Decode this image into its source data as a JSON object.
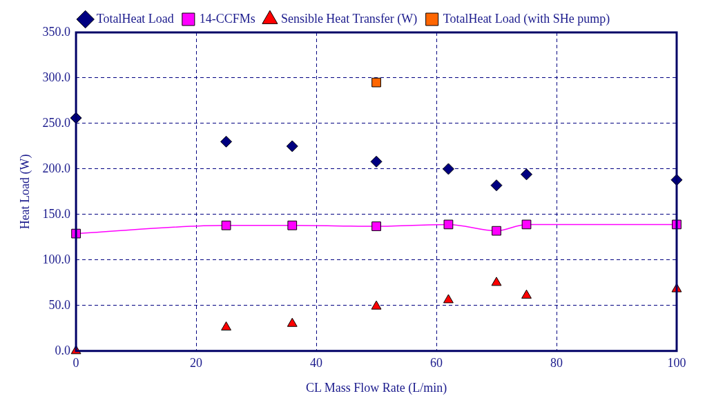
{
  "chart_data": {
    "type": "scatter",
    "xlabel": "CL Mass Flow Rate (L/min)",
    "ylabel": "Heat Load (W)",
    "xlim": [
      0,
      100
    ],
    "xticks": [
      0,
      20,
      40,
      60,
      80,
      100
    ],
    "ylim": [
      0,
      350
    ],
    "yticks": [
      {
        "value": 0,
        "label": "0.0"
      },
      {
        "value": 50,
        "label": "50.0"
      },
      {
        "value": 100,
        "label": "100.0"
      },
      {
        "value": 150,
        "label": "150.0"
      },
      {
        "value": 200,
        "label": "200.0"
      },
      {
        "value": 250,
        "label": "250.0"
      },
      {
        "value": 300,
        "label": "300.0"
      },
      {
        "value": 350,
        "label": "350.0"
      }
    ],
    "grid": true,
    "legend": "top",
    "series": [
      {
        "name": "TotalHeat Load",
        "marker": "diamond",
        "color": "#000080",
        "x": [
          0,
          25,
          36,
          50,
          62,
          70,
          75,
          100
        ],
        "values": [
          256,
          230,
          225,
          208,
          200,
          182,
          194,
          188
        ]
      },
      {
        "name": "14-CCFMs",
        "type": "line",
        "marker": "square",
        "color": "#ff00ff",
        "x": [
          0,
          25,
          36,
          50,
          62,
          70,
          75,
          100
        ],
        "values": [
          129,
          138,
          138,
          137,
          139,
          132,
          139,
          139
        ]
      },
      {
        "name": "Sensible Heat Transfer (W)",
        "marker": "triangle",
        "color": "#ff0000",
        "x": [
          0,
          25,
          36,
          50,
          62,
          70,
          75,
          100
        ],
        "values": [
          0,
          26,
          30,
          49,
          56,
          75,
          61,
          68
        ]
      },
      {
        "name": "TotalHeat Load (with SHe pump)",
        "marker": "square",
        "color": "#ff6600",
        "x": [
          50
        ],
        "values": [
          295
        ]
      }
    ]
  }
}
